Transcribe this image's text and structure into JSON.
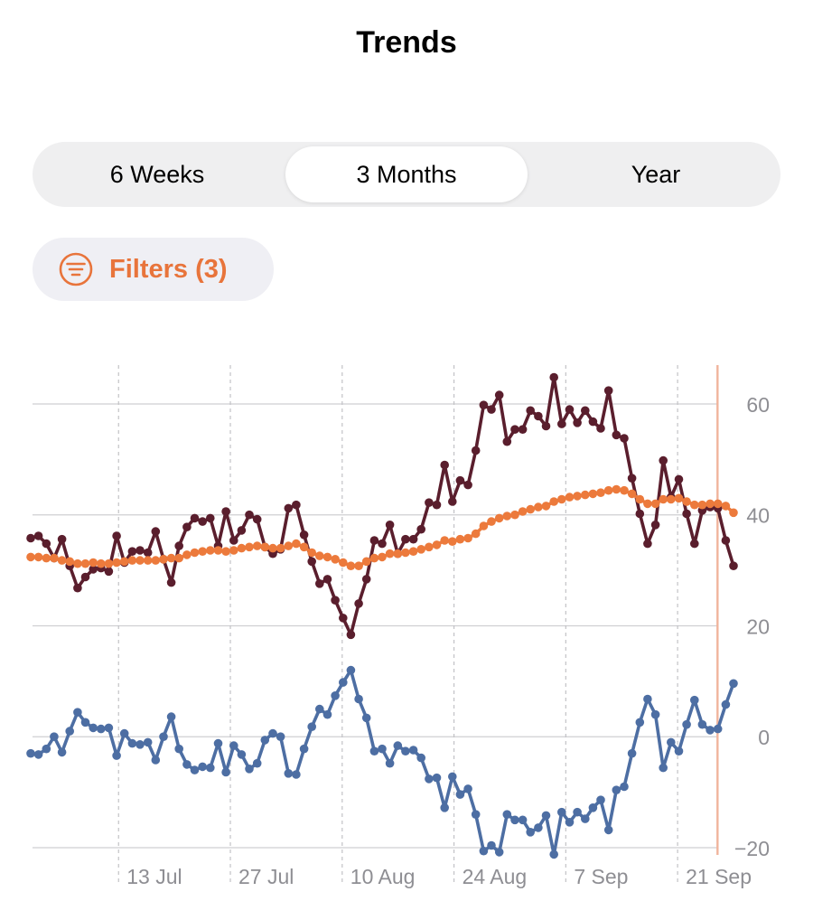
{
  "header": {
    "title": "Trends"
  },
  "range_tabs": [
    {
      "label": "6 Weeks",
      "selected": false
    },
    {
      "label": "3 Months",
      "selected": true
    },
    {
      "label": "Year",
      "selected": false
    }
  ],
  "filters": {
    "label": "Filters (3)",
    "icon": "filter-lines-icon",
    "color": "#e8743b"
  },
  "colors": {
    "dark": "#5a1e2d",
    "orange": "#ec7a3c",
    "blue": "#4d6ea3",
    "cursor": "#f0b49c"
  },
  "chart_data": {
    "type": "line",
    "x_start": "2025-06-29",
    "x_end": "2025-09-25",
    "x_ticks": [
      {
        "date": "2025-07-10",
        "label": "13 Jul"
      },
      {
        "date": "2025-07-24",
        "label": "27 Jul"
      },
      {
        "date": "2025-08-07",
        "label": "10 Aug"
      },
      {
        "date": "2025-08-21",
        "label": "24 Aug"
      },
      {
        "date": "2025-09-04",
        "label": "7 Sep"
      },
      {
        "date": "2025-09-18",
        "label": "21 Sep"
      }
    ],
    "ylim": [
      -20,
      67
    ],
    "y_ticks": [
      -20,
      0,
      20,
      40,
      60
    ],
    "grid": true,
    "cursor_date": "2025-09-23",
    "series": [
      {
        "color": "#5a1e2d",
        "values": [
          35.8,
          36.2,
          34.8,
          32.2,
          35.6,
          30.8,
          26.8,
          28.8,
          30.2,
          30.4,
          29.8,
          36.2,
          31.4,
          33.4,
          33.6,
          33.2,
          37.0,
          32.0,
          27.8,
          34.4,
          37.8,
          39.4,
          38.8,
          39.4,
          34.4,
          40.6,
          35.4,
          37.2,
          40.0,
          39.2,
          34.2,
          33.0,
          33.8,
          41.2,
          41.8,
          36.4,
          31.6,
          27.6,
          28.4,
          24.6,
          21.4,
          18.4,
          24.0,
          28.4,
          35.4,
          34.8,
          38.2,
          33.0,
          35.6,
          35.6,
          37.4,
          42.2,
          41.8,
          49.0,
          42.4,
          46.2,
          45.4,
          51.6,
          59.8,
          59.0,
          61.6,
          53.2,
          55.4,
          55.4,
          58.8,
          57.8,
          56.0,
          64.8,
          56.4,
          59.0,
          56.6,
          58.8,
          56.8,
          55.6,
          62.4,
          54.4,
          53.8,
          46.6,
          40.2,
          34.8,
          38.2,
          49.8,
          43.2,
          46.4,
          40.2,
          34.8,
          40.8,
          41.4,
          41.2,
          35.4,
          30.8
        ]
      },
      {
        "color": "#ec7a3c",
        "values": [
          32.4,
          32.4,
          32.2,
          32.2,
          31.8,
          31.6,
          31.2,
          31.2,
          31.4,
          31.2,
          31.2,
          31.4,
          31.6,
          31.8,
          31.8,
          31.8,
          31.8,
          32.0,
          32.2,
          32.2,
          32.8,
          33.2,
          33.4,
          33.6,
          33.6,
          33.4,
          33.6,
          34.0,
          34.2,
          34.4,
          34.2,
          34.0,
          34.0,
          34.4,
          34.8,
          34.2,
          33.2,
          32.6,
          32.4,
          32.0,
          31.4,
          30.8,
          30.8,
          31.6,
          32.2,
          32.4,
          33.0,
          33.0,
          33.2,
          33.4,
          33.8,
          34.2,
          34.6,
          35.4,
          35.2,
          35.6,
          35.8,
          36.6,
          38.0,
          38.8,
          39.4,
          39.8,
          40.0,
          40.6,
          41.0,
          41.4,
          41.6,
          42.4,
          42.8,
          43.2,
          43.4,
          43.6,
          43.8,
          44.0,
          44.4,
          44.6,
          44.4,
          43.8,
          42.8,
          42.0,
          42.0,
          42.8,
          42.8,
          43.0,
          42.4,
          41.8,
          41.8,
          42.0,
          42.0,
          41.6,
          40.4
        ]
      },
      {
        "color": "#4d6ea3",
        "values": [
          -3.0,
          -3.2,
          -2.2,
          0.0,
          -2.8,
          1.0,
          4.4,
          2.6,
          1.6,
          1.4,
          1.6,
          -3.4,
          0.6,
          -1.2,
          -1.4,
          -1.0,
          -4.2,
          0.0,
          3.6,
          -2.2,
          -5.0,
          -6.0,
          -5.4,
          -5.6,
          -1.2,
          -6.4,
          -1.6,
          -3.2,
          -5.8,
          -4.8,
          -0.6,
          0.6,
          0.0,
          -6.6,
          -6.8,
          -2.2,
          1.8,
          5.0,
          4.0,
          7.4,
          9.8,
          12.0,
          6.8,
          3.4,
          -2.6,
          -2.2,
          -4.8,
          -1.6,
          -2.6,
          -2.4,
          -3.8,
          -7.6,
          -7.4,
          -12.8,
          -7.2,
          -10.4,
          -9.4,
          -14.0,
          -20.6,
          -19.6,
          -20.8,
          -14.0,
          -15.0,
          -15.0,
          -17.2,
          -16.4,
          -14.2,
          -21.2,
          -13.6,
          -15.4,
          -13.6,
          -14.8,
          -12.8,
          -11.4,
          -16.8,
          -9.6,
          -9.0,
          -3.0,
          2.6,
          6.8,
          4.0,
          -5.6,
          -1.0,
          -2.6,
          2.2,
          6.6,
          2.2,
          1.2,
          1.4,
          5.8,
          9.6
        ]
      }
    ]
  }
}
